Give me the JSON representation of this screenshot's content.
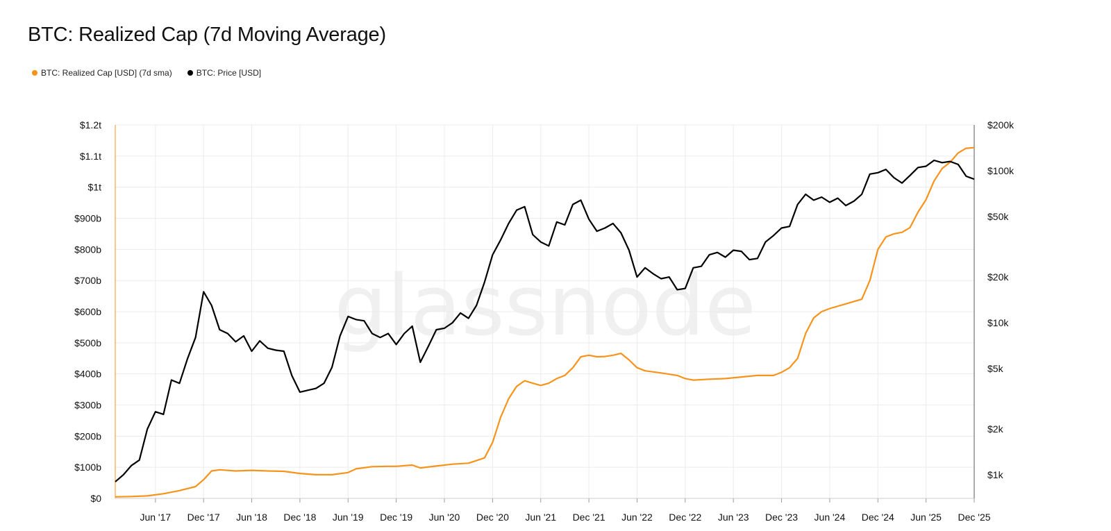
{
  "page": {
    "title": "BTC: Realized Cap (7d Moving Average)",
    "watermark": "glassnode"
  },
  "legend": [
    {
      "label": "BTC: Realized Cap [USD] (7d sma)",
      "color": "#f7931a"
    },
    {
      "label": "BTC: Price [USD]",
      "color": "#000000"
    }
  ],
  "chart_data": {
    "type": "line",
    "title": "BTC: Realized Cap (7d Moving Average)",
    "x_ticks": [
      "Jun '17",
      "Dec '17",
      "Jun '18",
      "Dec '18",
      "Jun '19",
      "Dec '19",
      "Jun '20",
      "Dec '20",
      "Jun '21",
      "Dec '21",
      "Jun '22",
      "Dec '22",
      "Jun '23",
      "Dec '23",
      "Jun '24",
      "Dec '24",
      "Jun '25",
      "Dec '25"
    ],
    "x_range": [
      "2017-01",
      "2025-12"
    ],
    "grid": true,
    "legend_position": "top-left",
    "left_axis": {
      "scale": "linear",
      "range": [
        0,
        1200
      ],
      "unit": "billions USD",
      "tick_values": [
        0,
        100,
        200,
        300,
        400,
        500,
        600,
        700,
        800,
        900,
        1000,
        1100,
        1200
      ],
      "tick_labels": [
        "$0",
        "$100b",
        "$200b",
        "$300b",
        "$400b",
        "$500b",
        "$600b",
        "$700b",
        "$800b",
        "$900b",
        "$1t",
        "$1.1t",
        "$1.2t"
      ]
    },
    "right_axis": {
      "scale": "log",
      "range": [
        700,
        200000
      ],
      "tick_values": [
        1000,
        2000,
        5000,
        10000,
        20000,
        50000,
        100000,
        200000
      ],
      "tick_labels": [
        "$1k",
        "$2k",
        "$5k",
        "$10k",
        "$20k",
        "$50k",
        "$100k",
        "$200k"
      ]
    },
    "series": [
      {
        "name": "BTC: Realized Cap [USD] (7d sma)",
        "axis": "left",
        "color": "#f7931a",
        "points": [
          [
            "2017-01",
            5
          ],
          [
            "2017-03",
            6
          ],
          [
            "2017-05",
            8
          ],
          [
            "2017-07",
            15
          ],
          [
            "2017-09",
            25
          ],
          [
            "2017-11",
            38
          ],
          [
            "2017-12",
            60
          ],
          [
            "2018-01",
            88
          ],
          [
            "2018-02",
            92
          ],
          [
            "2018-04",
            88
          ],
          [
            "2018-06",
            90
          ],
          [
            "2018-08",
            88
          ],
          [
            "2018-10",
            87
          ],
          [
            "2018-12",
            80
          ],
          [
            "2019-02",
            76
          ],
          [
            "2019-04",
            76
          ],
          [
            "2019-06",
            83
          ],
          [
            "2019-07",
            95
          ],
          [
            "2019-09",
            102
          ],
          [
            "2019-11",
            103
          ],
          [
            "2019-12",
            103
          ],
          [
            "2020-02",
            107
          ],
          [
            "2020-03",
            98
          ],
          [
            "2020-05",
            104
          ],
          [
            "2020-07",
            110
          ],
          [
            "2020-09",
            113
          ],
          [
            "2020-11",
            130
          ],
          [
            "2020-12",
            180
          ],
          [
            "2021-01",
            260
          ],
          [
            "2021-02",
            320
          ],
          [
            "2021-03",
            360
          ],
          [
            "2021-04",
            378
          ],
          [
            "2021-05",
            370
          ],
          [
            "2021-06",
            363
          ],
          [
            "2021-07",
            370
          ],
          [
            "2021-08",
            385
          ],
          [
            "2021-09",
            395
          ],
          [
            "2021-10",
            420
          ],
          [
            "2021-11",
            455
          ],
          [
            "2021-12",
            460
          ],
          [
            "2022-01",
            455
          ],
          [
            "2022-02",
            456
          ],
          [
            "2022-03",
            460
          ],
          [
            "2022-04",
            466
          ],
          [
            "2022-05",
            445
          ],
          [
            "2022-06",
            420
          ],
          [
            "2022-07",
            410
          ],
          [
            "2022-09",
            403
          ],
          [
            "2022-11",
            395
          ],
          [
            "2022-12",
            385
          ],
          [
            "2023-01",
            380
          ],
          [
            "2023-03",
            383
          ],
          [
            "2023-05",
            385
          ],
          [
            "2023-07",
            390
          ],
          [
            "2023-09",
            395
          ],
          [
            "2023-11",
            395
          ],
          [
            "2023-12",
            405
          ],
          [
            "2024-01",
            420
          ],
          [
            "2024-02",
            450
          ],
          [
            "2024-03",
            530
          ],
          [
            "2024-04",
            580
          ],
          [
            "2024-05",
            600
          ],
          [
            "2024-06",
            610
          ],
          [
            "2024-08",
            625
          ],
          [
            "2024-10",
            640
          ],
          [
            "2024-11",
            700
          ],
          [
            "2024-12",
            800
          ],
          [
            "2025-01",
            840
          ],
          [
            "2025-02",
            850
          ],
          [
            "2025-03",
            855
          ],
          [
            "2025-04",
            870
          ],
          [
            "2025-05",
            920
          ],
          [
            "2025-06",
            960
          ],
          [
            "2025-07",
            1020
          ],
          [
            "2025-08",
            1060
          ],
          [
            "2025-09",
            1080
          ],
          [
            "2025-10",
            1110
          ],
          [
            "2025-11",
            1125
          ],
          [
            "2025-12",
            1127
          ]
        ]
      },
      {
        "name": "BTC: Price [USD]",
        "axis": "right",
        "color": "#000000",
        "points": [
          [
            "2017-01",
            900
          ],
          [
            "2017-02",
            1000
          ],
          [
            "2017-03",
            1150
          ],
          [
            "2017-04",
            1250
          ],
          [
            "2017-05",
            2000
          ],
          [
            "2017-06",
            2600
          ],
          [
            "2017-07",
            2500
          ],
          [
            "2017-08",
            4200
          ],
          [
            "2017-09",
            4000
          ],
          [
            "2017-10",
            5800
          ],
          [
            "2017-11",
            8000
          ],
          [
            "2017-12",
            16000
          ],
          [
            "2018-01",
            13000
          ],
          [
            "2018-02",
            9000
          ],
          [
            "2018-03",
            8500
          ],
          [
            "2018-04",
            7500
          ],
          [
            "2018-05",
            8200
          ],
          [
            "2018-06",
            6500
          ],
          [
            "2018-07",
            7600
          ],
          [
            "2018-08",
            6800
          ],
          [
            "2018-09",
            6600
          ],
          [
            "2018-10",
            6500
          ],
          [
            "2018-11",
            4500
          ],
          [
            "2018-12",
            3500
          ],
          [
            "2019-01",
            3600
          ],
          [
            "2019-02",
            3700
          ],
          [
            "2019-03",
            4000
          ],
          [
            "2019-04",
            5100
          ],
          [
            "2019-05",
            8200
          ],
          [
            "2019-06",
            11000
          ],
          [
            "2019-07",
            10500
          ],
          [
            "2019-08",
            10300
          ],
          [
            "2019-09",
            8500
          ],
          [
            "2019-10",
            8000
          ],
          [
            "2019-11",
            8500
          ],
          [
            "2019-12",
            7200
          ],
          [
            "2020-01",
            8500
          ],
          [
            "2020-02",
            9500
          ],
          [
            "2020-03",
            5500
          ],
          [
            "2020-04",
            7000
          ],
          [
            "2020-05",
            9000
          ],
          [
            "2020-06",
            9200
          ],
          [
            "2020-07",
            10000
          ],
          [
            "2020-08",
            11600
          ],
          [
            "2020-09",
            10700
          ],
          [
            "2020-10",
            13000
          ],
          [
            "2020-11",
            18500
          ],
          [
            "2020-12",
            28000
          ],
          [
            "2021-01",
            35000
          ],
          [
            "2021-02",
            45000
          ],
          [
            "2021-03",
            55000
          ],
          [
            "2021-04",
            58000
          ],
          [
            "2021-05",
            38000
          ],
          [
            "2021-06",
            34000
          ],
          [
            "2021-07",
            32000
          ],
          [
            "2021-08",
            46000
          ],
          [
            "2021-09",
            44000
          ],
          [
            "2021-10",
            60000
          ],
          [
            "2021-11",
            64000
          ],
          [
            "2021-12",
            48000
          ],
          [
            "2022-01",
            40000
          ],
          [
            "2022-02",
            42000
          ],
          [
            "2022-03",
            45000
          ],
          [
            "2022-04",
            39000
          ],
          [
            "2022-05",
            30000
          ],
          [
            "2022-06",
            20000
          ],
          [
            "2022-07",
            23000
          ],
          [
            "2022-08",
            21000
          ],
          [
            "2022-09",
            19500
          ],
          [
            "2022-10",
            20000
          ],
          [
            "2022-11",
            16500
          ],
          [
            "2022-12",
            16800
          ],
          [
            "2023-01",
            23000
          ],
          [
            "2023-02",
            23500
          ],
          [
            "2023-03",
            28000
          ],
          [
            "2023-04",
            29000
          ],
          [
            "2023-05",
            27000
          ],
          [
            "2023-06",
            30000
          ],
          [
            "2023-07",
            29500
          ],
          [
            "2023-08",
            26000
          ],
          [
            "2023-09",
            26500
          ],
          [
            "2023-10",
            34000
          ],
          [
            "2023-11",
            37500
          ],
          [
            "2023-12",
            42000
          ],
          [
            "2024-01",
            43000
          ],
          [
            "2024-02",
            60000
          ],
          [
            "2024-03",
            70000
          ],
          [
            "2024-04",
            64000
          ],
          [
            "2024-05",
            67000
          ],
          [
            "2024-06",
            62000
          ],
          [
            "2024-07",
            66000
          ],
          [
            "2024-08",
            59000
          ],
          [
            "2024-09",
            63000
          ],
          [
            "2024-10",
            70000
          ],
          [
            "2024-11",
            95000
          ],
          [
            "2024-12",
            97000
          ],
          [
            "2025-01",
            102000
          ],
          [
            "2025-02",
            90000
          ],
          [
            "2025-03",
            83000
          ],
          [
            "2025-04",
            93000
          ],
          [
            "2025-05",
            105000
          ],
          [
            "2025-06",
            107000
          ],
          [
            "2025-07",
            117000
          ],
          [
            "2025-08",
            113000
          ],
          [
            "2025-09",
            115000
          ],
          [
            "2025-10",
            110000
          ],
          [
            "2025-11",
            92000
          ],
          [
            "2025-12",
            88000
          ]
        ]
      }
    ]
  }
}
